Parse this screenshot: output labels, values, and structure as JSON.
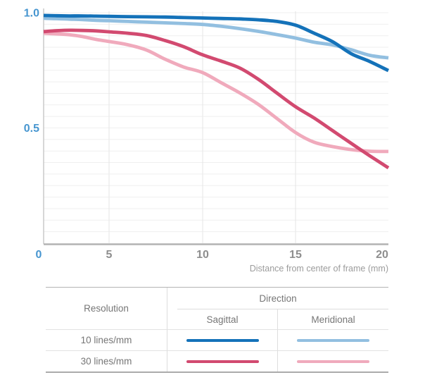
{
  "chart_data": {
    "type": "line",
    "title": "",
    "xlabel": "Distance from center of frame (mm)",
    "ylabel": "",
    "xlim": [
      0,
      20
    ],
    "ylim": [
      0,
      1.0
    ],
    "x_tick_labels": [
      "0",
      "5",
      "10",
      "15",
      "20"
    ],
    "x_tick_values": [
      0,
      5,
      10,
      15,
      20
    ],
    "y_tick_labels": [
      "1.0",
      "0.5",
      "0"
    ],
    "y_tick_values": [
      1.0,
      0.5,
      0
    ],
    "grid": {
      "horizontal_step": 0.05,
      "vertical_gridlines": [
        5,
        10,
        15
      ],
      "horizontal_color": "#efefef",
      "vertical_color": "#e6e6e6"
    },
    "legend_position": "bottom-table",
    "x": [
      0,
      1,
      2,
      3,
      4,
      5,
      6,
      7,
      8,
      9,
      10,
      11,
      12,
      13,
      14,
      15,
      16,
      17,
      18,
      19,
      20
    ],
    "series": [
      {
        "name": "10 lines/mm Sagittal",
        "resolution": "10 lines/mm",
        "direction": "Sagittal",
        "color": "#1472b9",
        "values": [
          0.988,
          0.987,
          0.986,
          0.986,
          0.985,
          0.984,
          0.983,
          0.982,
          0.981,
          0.979,
          0.977,
          0.975,
          0.973,
          0.969,
          0.962,
          0.946,
          0.911,
          0.874,
          0.822,
          0.788,
          0.749
        ]
      },
      {
        "name": "10 lines/mm Meridional",
        "resolution": "10 lines/mm",
        "direction": "Meridional",
        "color": "#92bfe0",
        "values": [
          0.976,
          0.974,
          0.972,
          0.97,
          0.967,
          0.965,
          0.962,
          0.959,
          0.956,
          0.953,
          0.949,
          0.941,
          0.931,
          0.919,
          0.905,
          0.89,
          0.872,
          0.86,
          0.839,
          0.815,
          0.804
        ]
      },
      {
        "name": "30 lines/mm Sagittal",
        "resolution": "30 lines/mm",
        "direction": "Sagittal",
        "color": "#d24a70",
        "values": [
          0.918,
          0.922,
          0.924,
          0.923,
          0.921,
          0.917,
          0.911,
          0.901,
          0.879,
          0.852,
          0.817,
          0.79,
          0.76,
          0.711,
          0.651,
          0.592,
          0.543,
          0.488,
          0.433,
          0.379,
          0.327
        ]
      },
      {
        "name": "30 lines/mm Meridional",
        "resolution": "30 lines/mm",
        "direction": "Meridional",
        "color": "#f0aabc",
        "values": [
          0.911,
          0.908,
          0.904,
          0.896,
          0.884,
          0.875,
          0.861,
          0.838,
          0.798,
          0.764,
          0.74,
          0.696,
          0.652,
          0.602,
          0.541,
          0.48,
          0.438,
          0.419,
          0.406,
          0.399,
          0.398
        ]
      }
    ],
    "colors": {
      "y_axis_label": "#4796d0",
      "x_zero_label": "#4796d0",
      "x_tick_label": "#8e8e8e",
      "axis_caption": "#9c9c9c",
      "y_axis_line": "#cacaca",
      "x_axis_line": "#b3b3b3"
    }
  },
  "legend": {
    "headers": {
      "resolution": "Resolution",
      "direction": "Direction",
      "sagittal": "Sagittal",
      "meridional": "Meridional"
    },
    "rows": [
      {
        "resolution": "10 lines/mm",
        "sagittal_color": "#1472b9",
        "meridional_color": "#92bfe0"
      },
      {
        "resolution": "30 lines/mm",
        "sagittal_color": "#d24a70",
        "meridional_color": "#f0aabc"
      }
    ]
  }
}
